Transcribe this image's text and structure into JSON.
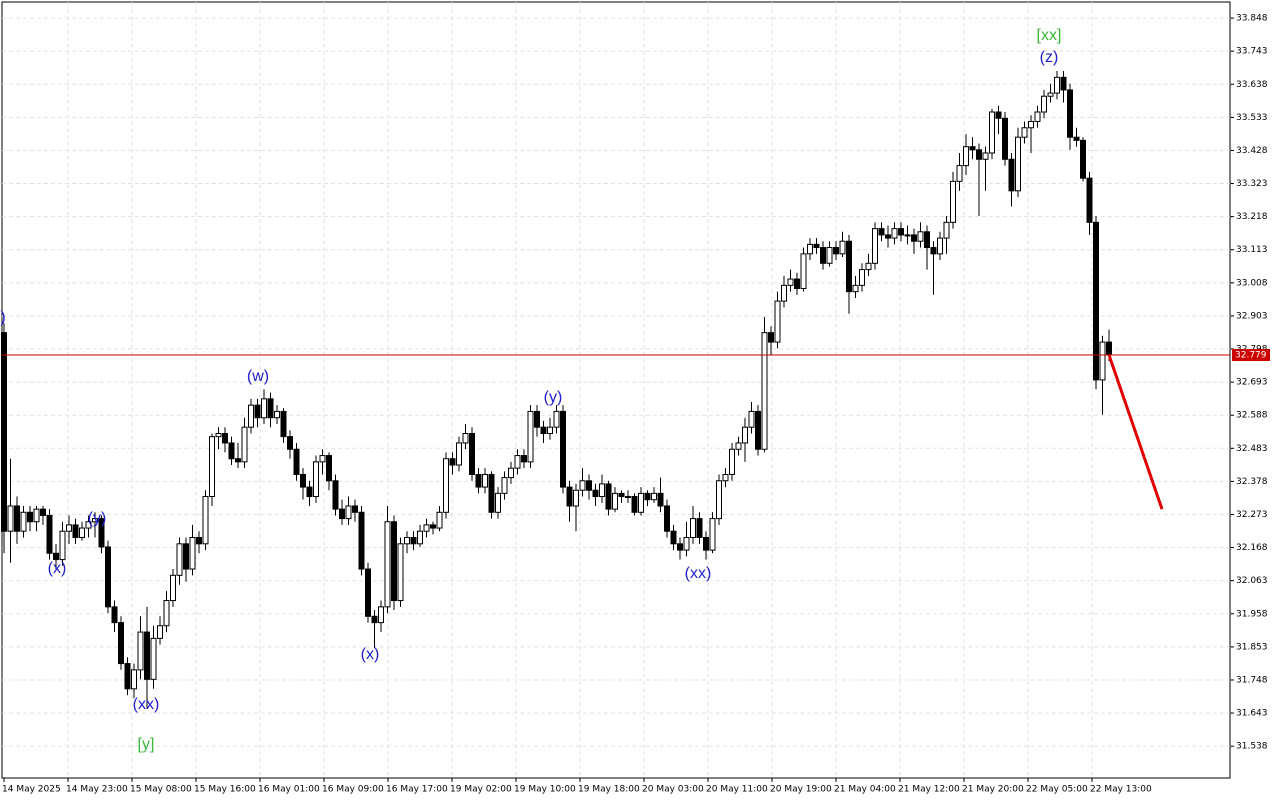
{
  "chart_data": {
    "type": "candlestick",
    "ylim": [
      31.437,
      33.899
    ],
    "yticks": [
      33.848,
      33.743,
      33.638,
      33.533,
      33.428,
      33.323,
      33.218,
      33.113,
      33.008,
      32.903,
      32.798,
      32.693,
      32.588,
      32.483,
      32.378,
      32.273,
      32.168,
      32.063,
      31.958,
      31.853,
      31.748,
      31.643,
      31.538
    ],
    "grid": true,
    "up_color": "#ffffff",
    "down_color": "#000000",
    "x_labels": [
      "14 May 2025",
      "14 May 23:00",
      "15 May 08:00",
      "15 May 16:00",
      "16 May 01:00",
      "16 May 09:00",
      "16 May 17:00",
      "19 May 02:00",
      "19 May 10:00",
      "19 May 18:00",
      "20 May 03:00",
      "20 May 11:00",
      "20 May 19:00",
      "21 May 04:00",
      "21 May 12:00",
      "21 May 20:00",
      "22 May 05:00",
      "22 May 13:00"
    ],
    "last_price": 32.779,
    "last_price_color": "#cc0000",
    "forecast_end": 32.29,
    "forecast_color": "#e00000",
    "annotations": [
      {
        "text": ")",
        "color": "#2020cc"
      },
      {
        "text": "(x)",
        "color": "#2020cc"
      },
      {
        "text": "(y)",
        "color": "#2020cc"
      },
      {
        "text": "(xx)",
        "color": "#2020cc"
      },
      {
        "text": "[y]",
        "color": "#3cb83c"
      },
      {
        "text": "(w)",
        "color": "#2020cc"
      },
      {
        "text": "(x)",
        "color": "#2020cc"
      },
      {
        "text": "(y)",
        "color": "#2020cc"
      },
      {
        "text": "(xx)",
        "color": "#2020cc"
      },
      {
        "text": "(z)",
        "color": "#2020cc"
      },
      {
        "text": "[xx]",
        "color": "#3cb83c"
      }
    ],
    "ohlc": [
      [
        32.85,
        32.88,
        32.15,
        32.22
      ],
      [
        32.22,
        32.45,
        32.12,
        32.3
      ],
      [
        32.3,
        32.33,
        32.18,
        32.22
      ],
      [
        32.22,
        32.3,
        32.2,
        32.28
      ],
      [
        32.28,
        32.3,
        32.22,
        32.25
      ],
      [
        32.25,
        32.3,
        32.22,
        32.29
      ],
      [
        32.29,
        32.3,
        32.24,
        32.27
      ],
      [
        32.27,
        32.29,
        32.13,
        32.15
      ],
      [
        32.15,
        32.18,
        32.1,
        32.13
      ],
      [
        32.13,
        32.25,
        32.11,
        32.22
      ],
      [
        32.22,
        32.27,
        32.18,
        32.24
      ],
      [
        32.24,
        32.26,
        32.18,
        32.2
      ],
      [
        32.2,
        32.25,
        32.19,
        32.23
      ],
      [
        32.23,
        32.27,
        32.2,
        32.25
      ],
      [
        32.25,
        32.28,
        32.2,
        32.26
      ],
      [
        32.26,
        32.27,
        32.15,
        32.17
      ],
      [
        32.17,
        32.19,
        31.96,
        31.98
      ],
      [
        31.98,
        32.0,
        31.9,
        31.93
      ],
      [
        31.93,
        31.95,
        31.78,
        31.8
      ],
      [
        31.8,
        31.82,
        31.7,
        31.72
      ],
      [
        31.72,
        31.8,
        31.69,
        31.78
      ],
      [
        31.78,
        31.95,
        31.75,
        31.9
      ],
      [
        31.9,
        31.98,
        31.66,
        31.75
      ],
      [
        31.75,
        31.92,
        31.72,
        31.88
      ],
      [
        31.88,
        31.95,
        31.86,
        31.92
      ],
      [
        31.92,
        32.03,
        31.9,
        32.0
      ],
      [
        32.0,
        32.1,
        31.98,
        32.08
      ],
      [
        32.08,
        32.2,
        32.05,
        32.18
      ],
      [
        32.18,
        32.2,
        32.06,
        32.1
      ],
      [
        32.1,
        32.24,
        32.08,
        32.2
      ],
      [
        32.2,
        32.22,
        32.15,
        32.18
      ],
      [
        32.18,
        32.35,
        32.16,
        32.33
      ],
      [
        32.33,
        32.53,
        32.3,
        32.52
      ],
      [
        32.52,
        32.55,
        32.48,
        32.53
      ],
      [
        32.53,
        32.55,
        32.47,
        32.5
      ],
      [
        32.5,
        32.52,
        32.43,
        32.45
      ],
      [
        32.45,
        32.5,
        32.42,
        32.44
      ],
      [
        32.44,
        32.58,
        32.42,
        32.55
      ],
      [
        32.55,
        32.64,
        32.53,
        32.62
      ],
      [
        32.62,
        32.64,
        32.55,
        32.58
      ],
      [
        32.58,
        32.67,
        32.56,
        32.64
      ],
      [
        32.64,
        32.66,
        32.55,
        32.58
      ],
      [
        32.58,
        32.62,
        32.56,
        32.6
      ],
      [
        32.6,
        32.61,
        32.5,
        32.52
      ],
      [
        32.52,
        32.54,
        32.45,
        32.48
      ],
      [
        32.48,
        32.5,
        32.38,
        32.4
      ],
      [
        32.4,
        32.42,
        32.32,
        32.36
      ],
      [
        32.36,
        32.38,
        32.3,
        32.33
      ],
      [
        32.33,
        32.46,
        32.31,
        32.44
      ],
      [
        32.44,
        32.48,
        32.4,
        32.46
      ],
      [
        32.46,
        32.47,
        32.35,
        32.38
      ],
      [
        32.38,
        32.4,
        32.27,
        32.29
      ],
      [
        32.29,
        32.32,
        32.24,
        32.26
      ],
      [
        32.26,
        32.33,
        32.24,
        32.3
      ],
      [
        32.3,
        32.32,
        32.25,
        32.28
      ],
      [
        32.28,
        32.3,
        32.08,
        32.1
      ],
      [
        32.1,
        32.12,
        31.93,
        31.95
      ],
      [
        31.95,
        31.97,
        31.85,
        31.93
      ],
      [
        31.93,
        32.0,
        31.9,
        31.98
      ],
      [
        31.98,
        32.3,
        31.96,
        32.25
      ],
      [
        32.25,
        32.27,
        31.97,
        32.0
      ],
      [
        32.0,
        32.2,
        31.98,
        32.18
      ],
      [
        32.18,
        32.22,
        32.15,
        32.2
      ],
      [
        32.2,
        32.22,
        32.16,
        32.18
      ],
      [
        32.18,
        32.24,
        32.17,
        32.22
      ],
      [
        32.22,
        32.26,
        32.2,
        32.24
      ],
      [
        32.24,
        32.25,
        32.21,
        32.23
      ],
      [
        32.23,
        32.3,
        32.22,
        32.28
      ],
      [
        32.28,
        32.47,
        32.26,
        32.45
      ],
      [
        32.45,
        32.47,
        32.4,
        32.43
      ],
      [
        32.43,
        32.52,
        32.41,
        32.5
      ],
      [
        32.5,
        32.56,
        32.48,
        32.53
      ],
      [
        32.53,
        32.55,
        32.38,
        32.4
      ],
      [
        32.4,
        32.42,
        32.34,
        32.36
      ],
      [
        32.36,
        32.42,
        32.34,
        32.4
      ],
      [
        32.4,
        32.41,
        32.26,
        32.28
      ],
      [
        32.28,
        32.36,
        32.26,
        32.34
      ],
      [
        32.34,
        32.41,
        32.32,
        32.39
      ],
      [
        32.39,
        32.44,
        32.37,
        32.42
      ],
      [
        32.42,
        32.48,
        32.4,
        32.46
      ],
      [
        32.46,
        32.48,
        32.42,
        32.44
      ],
      [
        32.44,
        32.62,
        32.42,
        32.6
      ],
      [
        32.6,
        32.62,
        32.52,
        32.55
      ],
      [
        32.55,
        32.57,
        32.5,
        32.53
      ],
      [
        32.53,
        32.58,
        32.51,
        32.55
      ],
      [
        32.55,
        32.62,
        32.53,
        32.6
      ],
      [
        32.6,
        32.62,
        32.34,
        32.36
      ],
      [
        32.36,
        32.38,
        32.25,
        32.3
      ],
      [
        32.3,
        32.37,
        32.22,
        32.35
      ],
      [
        32.35,
        32.42,
        32.33,
        32.38
      ],
      [
        32.38,
        32.4,
        32.32,
        32.35
      ],
      [
        32.35,
        32.37,
        32.3,
        32.33
      ],
      [
        32.33,
        32.4,
        32.31,
        32.37
      ],
      [
        32.37,
        32.38,
        32.27,
        32.29
      ],
      [
        32.29,
        32.36,
        32.28,
        32.34
      ],
      [
        32.34,
        32.35,
        32.31,
        32.33
      ],
      [
        32.33,
        32.35,
        32.31,
        32.33
      ],
      [
        32.33,
        32.34,
        32.27,
        32.28
      ],
      [
        32.28,
        32.36,
        32.27,
        32.34
      ],
      [
        32.34,
        32.35,
        32.3,
        32.32
      ],
      [
        32.32,
        32.36,
        32.31,
        32.34
      ],
      [
        32.34,
        32.39,
        32.28,
        32.3
      ],
      [
        32.3,
        32.32,
        32.2,
        32.22
      ],
      [
        32.22,
        32.24,
        32.16,
        32.18
      ],
      [
        32.18,
        32.2,
        32.13,
        32.16
      ],
      [
        32.16,
        32.25,
        32.14,
        32.2
      ],
      [
        32.2,
        32.3,
        32.18,
        32.26
      ],
      [
        32.26,
        32.28,
        32.18,
        32.2
      ],
      [
        32.2,
        32.22,
        32.13,
        32.16
      ],
      [
        32.16,
        32.28,
        32.15,
        32.26
      ],
      [
        32.26,
        32.4,
        32.24,
        32.38
      ],
      [
        32.38,
        32.42,
        32.36,
        32.4
      ],
      [
        32.4,
        32.5,
        32.38,
        32.48
      ],
      [
        32.48,
        32.52,
        32.46,
        32.5
      ],
      [
        32.5,
        32.58,
        32.44,
        32.55
      ],
      [
        32.55,
        32.63,
        32.53,
        32.6
      ],
      [
        32.6,
        32.62,
        32.46,
        32.48
      ],
      [
        32.48,
        32.9,
        32.47,
        32.85
      ],
      [
        32.85,
        32.87,
        32.78,
        32.82
      ],
      [
        32.82,
        32.98,
        32.8,
        32.95
      ],
      [
        32.95,
        33.03,
        32.93,
        33.0
      ],
      [
        33.0,
        33.05,
        32.98,
        33.02
      ],
      [
        33.02,
        33.04,
        32.97,
        32.99
      ],
      [
        32.99,
        33.12,
        32.98,
        33.1
      ],
      [
        33.1,
        33.15,
        33.08,
        33.13
      ],
      [
        33.13,
        33.15,
        33.1,
        33.12
      ],
      [
        33.12,
        33.14,
        33.05,
        33.07
      ],
      [
        33.07,
        33.14,
        33.06,
        33.12
      ],
      [
        33.12,
        33.14,
        33.08,
        33.1
      ],
      [
        33.1,
        33.17,
        33.09,
        33.14
      ],
      [
        33.14,
        33.16,
        32.91,
        32.98
      ],
      [
        32.98,
        33.03,
        32.96,
        33.0
      ],
      [
        33.0,
        33.07,
        32.98,
        33.05
      ],
      [
        33.05,
        33.1,
        33.03,
        33.07
      ],
      [
        33.07,
        33.2,
        33.05,
        33.18
      ],
      [
        33.18,
        33.2,
        33.14,
        33.16
      ],
      [
        33.16,
        33.19,
        33.12,
        33.15
      ],
      [
        33.15,
        33.2,
        33.13,
        33.18
      ],
      [
        33.18,
        33.2,
        33.14,
        33.16
      ],
      [
        33.16,
        33.19,
        33.13,
        33.16
      ],
      [
        33.16,
        33.18,
        33.1,
        33.14
      ],
      [
        33.14,
        33.2,
        33.12,
        33.17
      ],
      [
        33.17,
        33.19,
        33.05,
        33.12
      ],
      [
        33.12,
        33.14,
        32.97,
        33.1
      ],
      [
        33.1,
        33.17,
        33.08,
        33.15
      ],
      [
        33.15,
        33.22,
        33.1,
        33.2
      ],
      [
        33.2,
        33.36,
        33.18,
        33.33
      ],
      [
        33.33,
        33.42,
        33.3,
        33.38
      ],
      [
        33.38,
        33.48,
        33.35,
        33.44
      ],
      [
        33.44,
        33.47,
        33.4,
        33.43
      ],
      [
        33.43,
        33.45,
        33.22,
        33.4
      ],
      [
        33.4,
        33.44,
        33.3,
        33.42
      ],
      [
        33.42,
        33.56,
        33.4,
        33.55
      ],
      [
        33.55,
        33.57,
        33.48,
        33.53
      ],
      [
        33.53,
        33.55,
        33.38,
        33.4
      ],
      [
        33.4,
        33.42,
        33.25,
        33.3
      ],
      [
        33.3,
        33.5,
        33.28,
        33.47
      ],
      [
        33.47,
        33.52,
        33.45,
        33.5
      ],
      [
        33.5,
        33.54,
        33.42,
        33.52
      ],
      [
        33.52,
        33.57,
        33.5,
        33.55
      ],
      [
        33.55,
        33.62,
        33.53,
        33.6
      ],
      [
        33.6,
        33.64,
        33.58,
        33.61
      ],
      [
        33.61,
        33.68,
        33.59,
        33.66
      ],
      [
        33.66,
        33.68,
        33.58,
        33.62
      ],
      [
        33.62,
        33.64,
        33.43,
        33.47
      ],
      [
        33.47,
        33.5,
        33.44,
        33.46
      ],
      [
        33.46,
        33.47,
        33.33,
        33.34
      ],
      [
        33.34,
        33.36,
        33.16,
        33.2
      ],
      [
        33.2,
        33.22,
        32.67,
        32.7
      ],
      [
        32.7,
        32.84,
        32.59,
        32.82
      ],
      [
        32.82,
        32.86,
        32.76,
        32.78
      ]
    ]
  }
}
